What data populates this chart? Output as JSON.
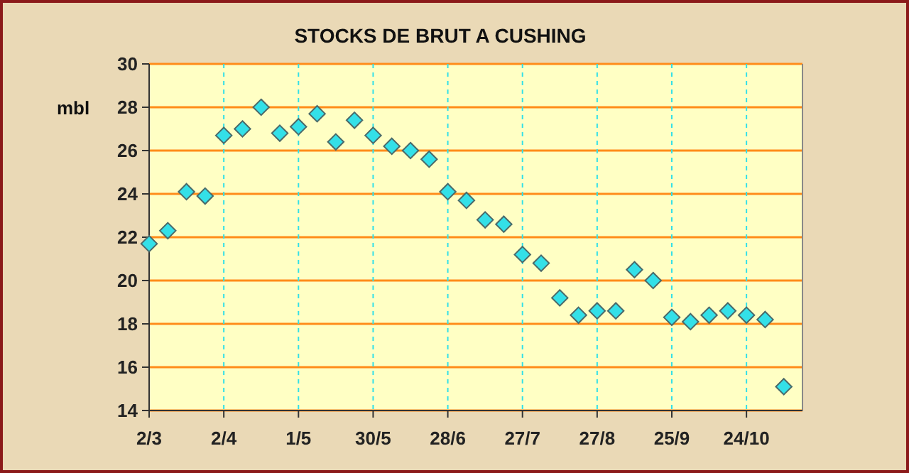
{
  "chart_data": {
    "type": "scatter",
    "title": "STOCKS DE BRUT A CUSHING",
    "ylabel": "mbl",
    "categories": [
      "2/3",
      null,
      null,
      null,
      "2/4",
      null,
      null,
      null,
      "1/5",
      null,
      null,
      null,
      "30/5",
      null,
      null,
      null,
      "28/6",
      null,
      null,
      null,
      "27/7",
      null,
      null,
      null,
      "27/8",
      null,
      null,
      null,
      "25/9",
      null,
      null,
      null,
      "24/10",
      null,
      null
    ],
    "series": [
      {
        "color": "#33e0e8",
        "values": [
          21.7,
          22.3,
          24.1,
          23.9,
          26.7,
          27.0,
          28.0,
          26.8,
          27.1,
          27.7,
          26.4,
          27.4,
          26.7,
          26.2,
          26.0,
          25.6,
          24.1,
          23.7,
          22.8,
          22.6,
          21.2,
          20.8,
          19.2,
          18.4,
          18.6,
          18.6,
          20.5,
          20.0,
          18.3,
          18.1,
          18.4,
          18.6,
          18.4,
          18.2,
          15.1
        ]
      }
    ],
    "ylim": [
      14,
      30
    ],
    "yticks": [
      14,
      16,
      18,
      20,
      22,
      24,
      26,
      28,
      30
    ],
    "grid": true,
    "marker": "diamond"
  }
}
